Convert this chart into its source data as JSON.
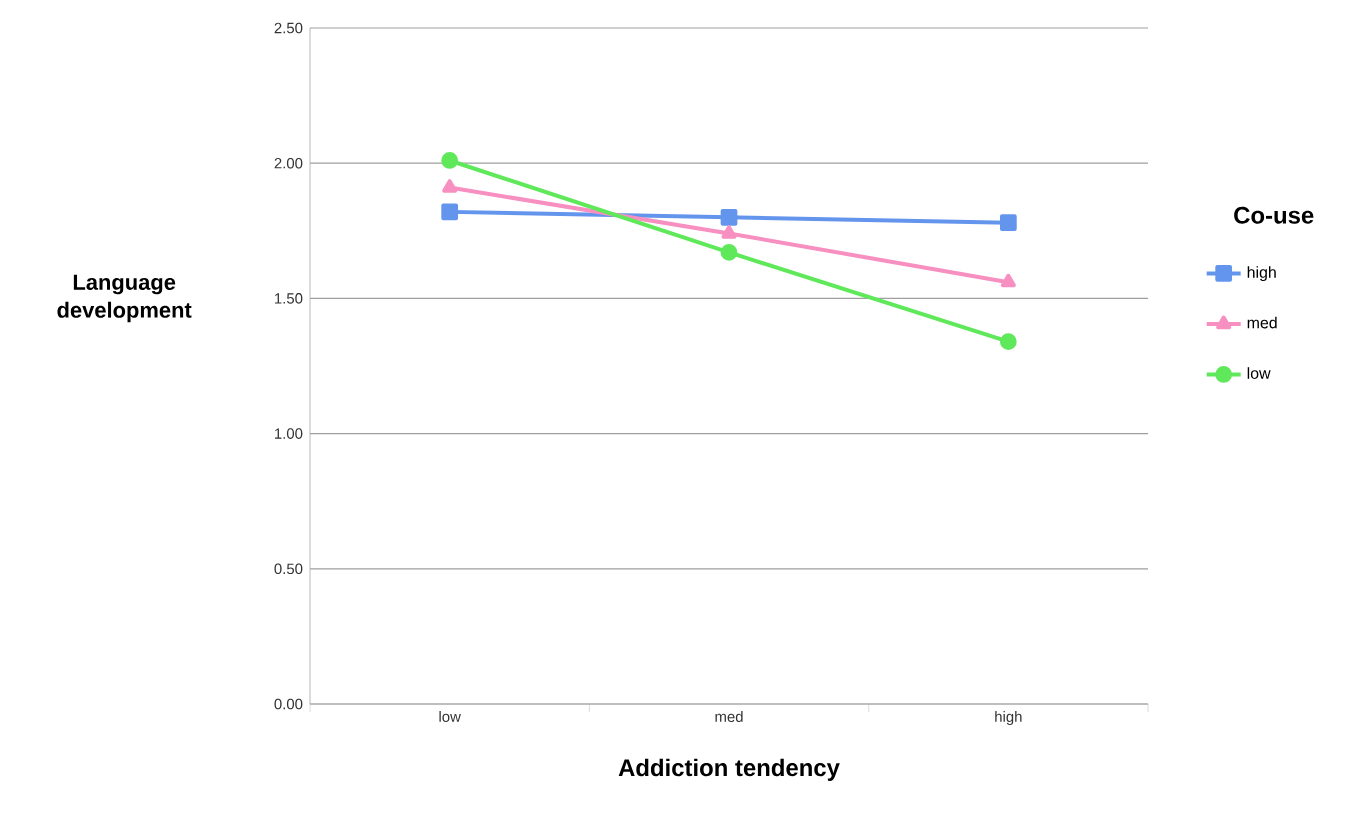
{
  "chart_data": {
    "type": "line",
    "xlabel": "Addiction tendency",
    "ylabel": "Language development",
    "legend_title": "Co-use",
    "categories": [
      "low",
      "med",
      "high"
    ],
    "series": [
      {
        "name": "high",
        "color": "#6495ed",
        "marker": "square",
        "values": [
          1.82,
          1.8,
          1.78
        ]
      },
      {
        "name": "med",
        "color": "#f78fc0",
        "marker": "triangle",
        "values": [
          1.91,
          1.74,
          1.56
        ]
      },
      {
        "name": "low",
        "color": "#5fe85a",
        "marker": "circle",
        "values": [
          2.01,
          1.67,
          1.34
        ]
      }
    ],
    "ylim": [
      0,
      2.5
    ],
    "yticks": [
      {
        "value": 0,
        "label": "0.00"
      },
      {
        "value": 0.5,
        "label": "0.50"
      },
      {
        "value": 1,
        "label": "1.00"
      },
      {
        "value": 1.5,
        "label": "1.50"
      },
      {
        "value": 2,
        "label": "2.00"
      },
      {
        "value": 2.5,
        "label": "2.50"
      }
    ],
    "grid": "y",
    "legend": "right"
  }
}
